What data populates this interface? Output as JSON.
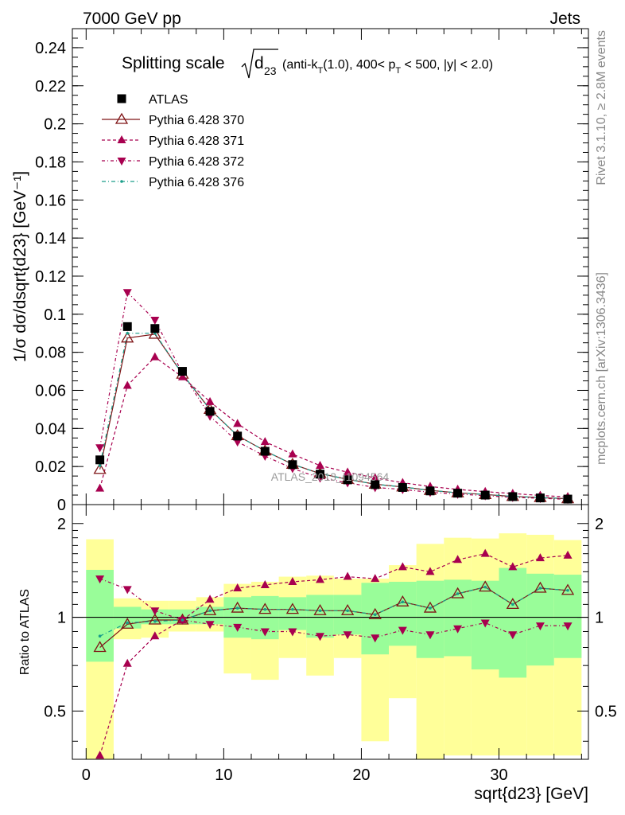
{
  "header": {
    "left": "7000 GeV pp",
    "right": "Jets"
  },
  "side": {
    "rivet": "Rivet 3.1.10, ≥ 2.8M events",
    "mcplots": "mcplots.cern.ch [arXiv:1306.3436]"
  },
  "title": {
    "prefix": "Splitting scale",
    "sqrt_body": "d",
    "sqrt_sub": "23",
    "details_a": "(anti-k",
    "details_a_sub": "T",
    "details_b": "(1.0), 400< p",
    "details_b_sub": "T",
    "details_c": " < 500, |y| < 2.0)"
  },
  "watermark": "ATLAS_2013_I1094564",
  "colors": {
    "data": "#000000",
    "p370": "#7f1416",
    "p371": "#a8004f",
    "p372": "#a8004f",
    "p376": "#1a9e8a",
    "band_inner": "#99fd99",
    "band_outer": "#ffff99"
  },
  "chart_data": [
    {
      "type": "line",
      "panel": "main",
      "ylabel": "1/σ dσ/dsqrt{d23} [GeV⁻¹]",
      "xlim": [
        -1,
        36.5
      ],
      "ylim": [
        0,
        0.25
      ],
      "x_ticks": [
        0,
        10,
        20,
        30
      ],
      "y_ticks": [
        0,
        0.02,
        0.04,
        0.06,
        0.08,
        0.1,
        0.12,
        0.14,
        0.16,
        0.18,
        0.2,
        0.22,
        0.24
      ],
      "y_tick_labels": [
        "0",
        "0.02",
        "0.04",
        "0.06",
        "0.08",
        "0.1",
        "0.12",
        "0.14",
        "0.16",
        "0.18",
        "0.2",
        "0.22",
        "0.24"
      ],
      "legend_position": "top-left",
      "x": [
        1,
        3,
        5,
        7,
        9,
        11,
        13,
        15,
        17,
        19,
        21,
        23,
        25,
        27,
        29,
        31,
        33,
        35
      ],
      "series": [
        {
          "name": "ATLAS",
          "style": "data",
          "values": [
            0.0235,
            0.0935,
            0.0925,
            0.07,
            0.049,
            0.036,
            0.028,
            0.021,
            0.016,
            0.013,
            0.0105,
            0.009,
            0.0072,
            0.006,
            0.005,
            0.0042,
            0.0035,
            0.0029
          ]
        },
        {
          "name": "Pythia 6.428 370",
          "style": "p370",
          "values": [
            0.0185,
            0.0875,
            0.0895,
            0.0685,
            0.05,
            0.0362,
            0.0282,
            0.0212,
            0.0163,
            0.0133,
            0.0107,
            0.0093,
            0.0075,
            0.0062,
            0.0053,
            0.0043,
            0.0037,
            0.0031
          ]
        },
        {
          "name": "Pythia 6.428 371",
          "style": "p371",
          "values": [
            0.0085,
            0.0625,
            0.0775,
            0.067,
            0.054,
            0.0425,
            0.033,
            0.0265,
            0.0205,
            0.017,
            0.014,
            0.0115,
            0.0095,
            0.008,
            0.0068,
            0.0058,
            0.0048,
            0.004
          ]
        },
        {
          "name": "Pythia 6.428 372",
          "style": "p372",
          "values": [
            0.03,
            0.1115,
            0.097,
            0.069,
            0.0465,
            0.033,
            0.0255,
            0.019,
            0.014,
            0.0115,
            0.009,
            0.008,
            0.0065,
            0.0055,
            0.0047,
            0.0038,
            0.0033,
            0.0028
          ]
        },
        {
          "name": "Pythia 6.428 376",
          "style": "p376",
          "values": [
            0.0205,
            0.09,
            0.09,
            0.0685,
            0.05,
            0.0362,
            0.0282,
            0.0212,
            0.0163,
            0.0133,
            0.0107,
            0.0093,
            0.0075,
            0.0062,
            0.0053,
            0.0043,
            0.0037,
            0.0031
          ]
        }
      ]
    },
    {
      "type": "line",
      "panel": "ratio",
      "xlabel": "sqrt{d23} [GeV]",
      "ylabel": "Ratio to ATLAS",
      "xlim": [
        -1,
        36.5
      ],
      "ylim": [
        0.35,
        2.3
      ],
      "y_scale": "log",
      "x_ticks": [
        0,
        10,
        20,
        30
      ],
      "x_tick_labels": [
        "0",
        "10",
        "20",
        "30"
      ],
      "y_ticks": [
        0.5,
        1,
        2
      ],
      "y_tick_labels": [
        "0.5",
        "1",
        "2"
      ],
      "x": [
        1,
        3,
        5,
        7,
        9,
        11,
        13,
        15,
        17,
        19,
        21,
        23,
        25,
        27,
        29,
        31,
        33,
        35
      ],
      "bins": [
        [
          0,
          2
        ],
        [
          2,
          4
        ],
        [
          4,
          6
        ],
        [
          6,
          8
        ],
        [
          8,
          10
        ],
        [
          10,
          12
        ],
        [
          12,
          14
        ],
        [
          14,
          16
        ],
        [
          16,
          18
        ],
        [
          18,
          20
        ],
        [
          20,
          22
        ],
        [
          22,
          24
        ],
        [
          24,
          26
        ],
        [
          26,
          28
        ],
        [
          28,
          30
        ],
        [
          30,
          32
        ],
        [
          32,
          34
        ],
        [
          34,
          36
        ]
      ],
      "band_outer": {
        "lo": [
          0.35,
          0.85,
          0.86,
          0.9,
          0.9,
          0.66,
          0.63,
          0.74,
          0.65,
          0.74,
          0.4,
          0.55,
          0.35,
          0.36,
          0.36,
          0.36,
          0.36,
          0.36
        ],
        "hi": [
          1.78,
          1.15,
          1.13,
          1.13,
          1.16,
          1.28,
          1.3,
          1.35,
          1.36,
          1.33,
          1.33,
          1.47,
          1.72,
          1.8,
          1.79,
          1.86,
          1.84,
          1.77
        ]
      },
      "band_inner": {
        "lo": [
          0.72,
          0.92,
          0.95,
          0.95,
          0.95,
          0.86,
          0.85,
          0.91,
          0.86,
          0.88,
          0.76,
          0.81,
          0.74,
          0.75,
          0.68,
          0.64,
          0.7,
          0.74
        ],
        "hi": [
          1.42,
          1.08,
          1.06,
          1.06,
          1.08,
          1.16,
          1.17,
          1.16,
          1.18,
          1.18,
          1.29,
          1.3,
          1.31,
          1.32,
          1.31,
          1.44,
          1.38,
          1.37
        ]
      },
      "series": [
        {
          "name": "Pythia 6.428 370",
          "style": "p370",
          "values": [
            0.8,
            0.95,
            0.98,
            0.98,
            1.05,
            1.07,
            1.06,
            1.06,
            1.05,
            1.05,
            1.02,
            1.12,
            1.07,
            1.19,
            1.25,
            1.1,
            1.24,
            1.22
          ]
        },
        {
          "name": "Pythia 6.428 371",
          "style": "p371",
          "values": [
            0.36,
            0.71,
            0.87,
            0.98,
            1.14,
            1.24,
            1.27,
            1.3,
            1.32,
            1.35,
            1.33,
            1.45,
            1.4,
            1.53,
            1.6,
            1.45,
            1.55,
            1.58
          ]
        },
        {
          "name": "Pythia 6.428 372",
          "style": "p372",
          "values": [
            1.33,
            1.23,
            1.05,
            0.98,
            0.95,
            0.93,
            0.9,
            0.9,
            0.87,
            0.88,
            0.86,
            0.91,
            0.88,
            0.92,
            0.96,
            0.88,
            0.94,
            0.94
          ]
        },
        {
          "name": "Pythia 6.428 376",
          "style": "p376",
          "values": [
            0.87,
            0.96,
            0.97,
            0.98,
            1.05,
            1.07,
            1.06,
            1.06,
            1.05,
            1.05,
            1.02,
            1.12,
            1.07,
            1.19,
            1.25,
            1.1,
            1.24,
            1.22
          ]
        }
      ]
    }
  ]
}
